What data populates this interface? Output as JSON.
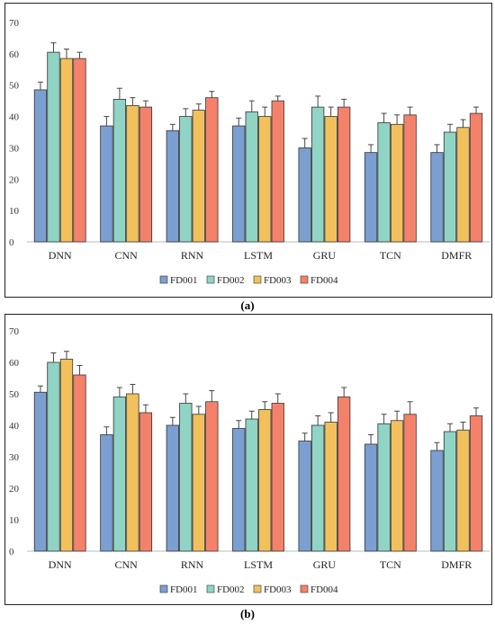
{
  "captions": [
    "(a)",
    "(b)"
  ],
  "colors": {
    "FD001": "#7b9fd0",
    "FD002": "#8fd4c4",
    "FD003": "#f2c15d",
    "FD004": "#f4826a"
  },
  "chart_data": [
    {
      "type": "bar",
      "title": "",
      "xlabel": "",
      "ylabel": "",
      "ylim": [
        0,
        70
      ],
      "yticks": [
        0,
        10,
        20,
        30,
        40,
        50,
        60,
        70
      ],
      "grid": false,
      "legend": "bottom",
      "categories": [
        "DNN",
        "CNN",
        "RNN",
        "LSTM",
        "GRU",
        "TCN",
        "DMFR"
      ],
      "series": [
        {
          "name": "FD001",
          "values": [
            48.5,
            37,
            35.5,
            37,
            30,
            28.5,
            28.5
          ],
          "errors": [
            2.5,
            3,
            2,
            2.5,
            3,
            2.5,
            2.5
          ]
        },
        {
          "name": "FD002",
          "values": [
            60.5,
            45.5,
            40,
            41.5,
            43,
            38,
            35
          ],
          "errors": [
            3,
            3.5,
            2.5,
            3.5,
            3.5,
            3,
            2.5
          ]
        },
        {
          "name": "FD003",
          "values": [
            58.5,
            43.5,
            42,
            40,
            40,
            37.5,
            36.5
          ],
          "errors": [
            3,
            2.5,
            2,
            3,
            3,
            3,
            2.5
          ]
        },
        {
          "name": "FD004",
          "values": [
            58.5,
            43,
            46,
            45,
            43,
            40.5,
            41
          ],
          "errors": [
            2,
            2,
            2,
            1.5,
            2.5,
            2.5,
            2
          ]
        }
      ]
    },
    {
      "type": "bar",
      "title": "",
      "xlabel": "",
      "ylabel": "",
      "ylim": [
        0,
        70
      ],
      "yticks": [
        0,
        10,
        20,
        30,
        40,
        50,
        60,
        70
      ],
      "grid": false,
      "legend": "bottom",
      "categories": [
        "DNN",
        "CNN",
        "RNN",
        "LSTM",
        "GRU",
        "TCN",
        "DMFR"
      ],
      "series": [
        {
          "name": "FD001",
          "values": [
            50.5,
            37,
            40,
            39,
            35,
            34,
            32
          ],
          "errors": [
            2,
            2.5,
            2.5,
            2.5,
            2.5,
            3,
            2.5
          ]
        },
        {
          "name": "FD002",
          "values": [
            60,
            49,
            47,
            42,
            40,
            40.5,
            38
          ],
          "errors": [
            3,
            3,
            3,
            2.5,
            3,
            3,
            2.5
          ]
        },
        {
          "name": "FD003",
          "values": [
            61,
            50,
            43.5,
            45,
            41,
            41.5,
            38.5
          ],
          "errors": [
            2.5,
            3,
            2.5,
            2.5,
            3,
            3,
            2.5
          ]
        },
        {
          "name": "FD004",
          "values": [
            56,
            44,
            47.5,
            47,
            49,
            43.5,
            43
          ],
          "errors": [
            3,
            2.5,
            3.5,
            3,
            3,
            4,
            2.5
          ]
        }
      ]
    }
  ]
}
